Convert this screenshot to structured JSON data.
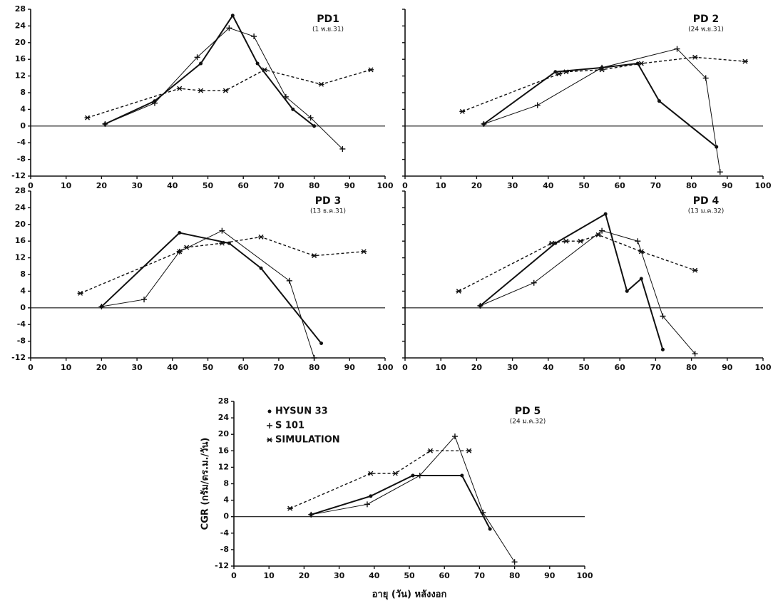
{
  "chart_data": [
    {
      "type": "line",
      "title": "PD1",
      "subtitle": "(1 พ.ย.31)",
      "xlim": [
        0,
        100
      ],
      "ylim": [
        -12,
        28
      ],
      "xticks": [
        0,
        10,
        20,
        30,
        40,
        50,
        60,
        70,
        80,
        90,
        100
      ],
      "yticks": [
        -12,
        -8,
        -4,
        0,
        4,
        8,
        12,
        16,
        20,
        24,
        28
      ],
      "ytick_labels": true,
      "series": [
        {
          "name": "HYSUN 33",
          "color": "#111111",
          "marker": "dot",
          "style": "solid",
          "x": [
            21,
            35,
            48,
            57,
            64,
            74,
            80
          ],
          "values": [
            0.5,
            6,
            15,
            26.5,
            15,
            4,
            0
          ]
        },
        {
          "name": "S 101",
          "color": "#111111",
          "marker": "plus",
          "style": "thin",
          "x": [
            21,
            35,
            47,
            56,
            63,
            72,
            79,
            88
          ],
          "values": [
            0.5,
            5.5,
            16.5,
            23.5,
            21.5,
            7,
            2,
            -5.5
          ]
        },
        {
          "name": "SIMULATION",
          "color": "#111111",
          "marker": "asterisk",
          "style": "dash",
          "x": [
            16,
            42,
            48,
            55,
            66,
            82,
            96
          ],
          "values": [
            2,
            9,
            8.5,
            8.5,
            13.5,
            10,
            13.5
          ]
        }
      ]
    },
    {
      "type": "line",
      "title": "PD 2",
      "subtitle": "(24 พ.ย.31)",
      "xlim": [
        0,
        100
      ],
      "ylim": [
        -12,
        28
      ],
      "xticks": [
        0,
        10,
        20,
        30,
        40,
        50,
        60,
        70,
        80,
        90,
        100
      ],
      "yticks": [
        -12,
        -8,
        -4,
        0,
        4,
        8,
        12,
        16,
        20,
        24,
        28
      ],
      "ytick_labels": false,
      "series": [
        {
          "name": "HYSUN 33",
          "color": "#111111",
          "marker": "dot",
          "style": "solid",
          "x": [
            22,
            42,
            55,
            65,
            71,
            87
          ],
          "values": [
            0.5,
            13,
            14,
            15,
            6,
            -5
          ]
        },
        {
          "name": "S 101",
          "color": "#111111",
          "marker": "plus",
          "style": "thin",
          "x": [
            22,
            37,
            55,
            76,
            84,
            88
          ],
          "values": [
            0.5,
            5,
            14,
            18.5,
            11.5,
            -11
          ]
        },
        {
          "name": "SIMULATION",
          "color": "#111111",
          "marker": "asterisk",
          "style": "dash",
          "x": [
            16,
            43,
            45,
            55,
            66,
            81,
            95
          ],
          "values": [
            3.5,
            12.5,
            13,
            13.5,
            15,
            16.5,
            15.5
          ]
        }
      ]
    },
    {
      "type": "line",
      "title": "PD 3",
      "subtitle": "(13 ธ.ค.31)",
      "xlim": [
        0,
        100
      ],
      "ylim": [
        -12,
        28
      ],
      "xticks": [
        0,
        10,
        20,
        30,
        40,
        50,
        60,
        70,
        80,
        90,
        100
      ],
      "yticks": [
        -12,
        -8,
        -4,
        0,
        4,
        8,
        12,
        16,
        20,
        24,
        28
      ],
      "ytick_labels": true,
      "series": [
        {
          "name": "HYSUN 33",
          "color": "#111111",
          "marker": "dot",
          "style": "solid",
          "x": [
            20,
            42,
            56,
            65,
            82
          ],
          "values": [
            0.3,
            18,
            15.5,
            9.5,
            -8.5
          ]
        },
        {
          "name": "S 101",
          "color": "#111111",
          "marker": "plus",
          "style": "thin",
          "x": [
            20,
            32,
            42,
            54,
            73,
            80
          ],
          "values": [
            0.3,
            2,
            13.5,
            18.5,
            6.5,
            -12
          ]
        },
        {
          "name": "SIMULATION",
          "color": "#111111",
          "marker": "asterisk",
          "style": "dash",
          "x": [
            14,
            42,
            44,
            54,
            65,
            80,
            94
          ],
          "values": [
            3.5,
            13.5,
            14.5,
            15.5,
            17,
            12.5,
            13.5
          ]
        }
      ]
    },
    {
      "type": "line",
      "title": "PD 4",
      "subtitle": "(13 ม.ค.32)",
      "xlim": [
        0,
        100
      ],
      "ylim": [
        -12,
        28
      ],
      "xticks": [
        0,
        10,
        20,
        30,
        40,
        50,
        60,
        70,
        80,
        90,
        100
      ],
      "yticks": [
        -12,
        -8,
        -4,
        0,
        4,
        8,
        12,
        16,
        20,
        24,
        28
      ],
      "ytick_labels": false,
      "series": [
        {
          "name": "HYSUN 33",
          "color": "#111111",
          "marker": "dot",
          "style": "solid",
          "x": [
            21,
            42,
            56,
            62,
            66,
            72
          ],
          "values": [
            0.5,
            15.5,
            22.5,
            4,
            7,
            -10
          ]
        },
        {
          "name": "S 101",
          "color": "#111111",
          "marker": "plus",
          "style": "thin",
          "x": [
            21,
            36,
            55,
            65,
            72,
            81
          ],
          "values": [
            0.5,
            6,
            18.5,
            16,
            -2,
            -11
          ]
        },
        {
          "name": "SIMULATION",
          "color": "#111111",
          "marker": "asterisk",
          "style": "dash",
          "x": [
            15,
            41,
            45,
            49,
            54,
            66,
            81
          ],
          "values": [
            4,
            15.5,
            16,
            16,
            17.5,
            13.5,
            9
          ]
        }
      ]
    },
    {
      "type": "line",
      "title": "PD 5",
      "subtitle": "(24 ม.ค.32)",
      "xlabel": "อายุ (วัน) หลังงอก",
      "ylabel": "CGR (กรัม/ตร.ม./วัน)",
      "legend": "upper left",
      "xlim": [
        0,
        100
      ],
      "ylim": [
        -12,
        28
      ],
      "xticks": [
        0,
        10,
        20,
        30,
        40,
        50,
        60,
        70,
        80,
        90,
        100
      ],
      "yticks": [
        -12,
        -8,
        -4,
        0,
        4,
        8,
        12,
        16,
        20,
        24,
        28
      ],
      "ytick_labels": true,
      "series": [
        {
          "name": "HYSUN 33",
          "color": "#111111",
          "marker": "dot",
          "style": "solid",
          "x": [
            22,
            39,
            51,
            65,
            73
          ],
          "values": [
            0.5,
            5,
            10,
            10,
            -3
          ]
        },
        {
          "name": "S 101",
          "color": "#111111",
          "marker": "plus",
          "style": "thin",
          "x": [
            22,
            38,
            53,
            63,
            71,
            80
          ],
          "values": [
            0.5,
            3,
            10,
            19.5,
            1,
            -11
          ]
        },
        {
          "name": "SIMULATION",
          "color": "#111111",
          "marker": "asterisk",
          "style": "dash",
          "x": [
            16,
            39,
            46,
            56,
            67
          ],
          "values": [
            2,
            10.5,
            10.5,
            16,
            16
          ]
        }
      ]
    }
  ]
}
